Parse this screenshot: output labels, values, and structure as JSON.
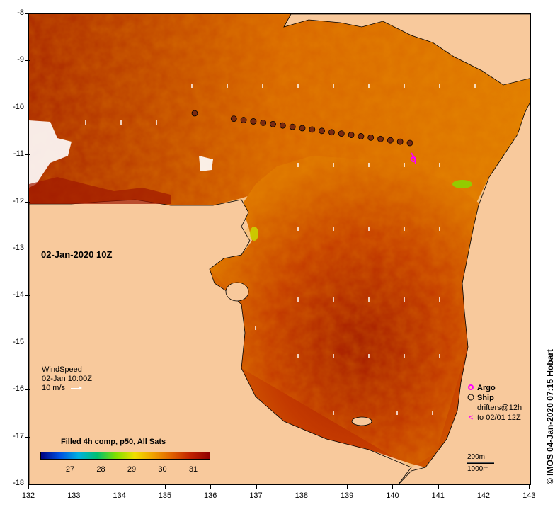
{
  "date_label": "02-Jan-2020 10Z",
  "y_axis_ticks": [
    "-8",
    "-9",
    "-10",
    "-11",
    "-12",
    "-13",
    "-14",
    "-15",
    "-16",
    "-17",
    "-18"
  ],
  "x_axis_ticks": [
    "132",
    "133",
    "134",
    "135",
    "136",
    "137",
    "138",
    "139",
    "140",
    "141",
    "142",
    "143"
  ],
  "wind": {
    "title": "WindSpeed",
    "time": "02-Jan 10:00Z",
    "scale": "10 m/s"
  },
  "colorbar": {
    "title": "Filled 4h comp, p50, All Sats",
    "ticks": [
      "27",
      "28",
      "29",
      "30",
      "31"
    ],
    "colors": [
      "#000080",
      "#0050e0",
      "#00b0e0",
      "#00c070",
      "#80e000",
      "#f0e000",
      "#f0a000",
      "#e06000",
      "#c02000",
      "#900000"
    ]
  },
  "legend": {
    "argo": "Argo",
    "ship": "Ship",
    "drifters_line1": "drifters@12h",
    "drifters_line2": "to 02/01 12Z"
  },
  "scale": {
    "contour1": "200m",
    "contour2": "1000m"
  },
  "credit": "© IMOS 04-Jan-2020 07:15 Hobart",
  "colors": {
    "land": "#f8c99c",
    "sst_warm": "#a81c00",
    "sst_mid": "#d85a00",
    "sst_cool": "#e88a10",
    "ship_marker": "#7a2a10",
    "argo_marker": "#ff00ff"
  }
}
